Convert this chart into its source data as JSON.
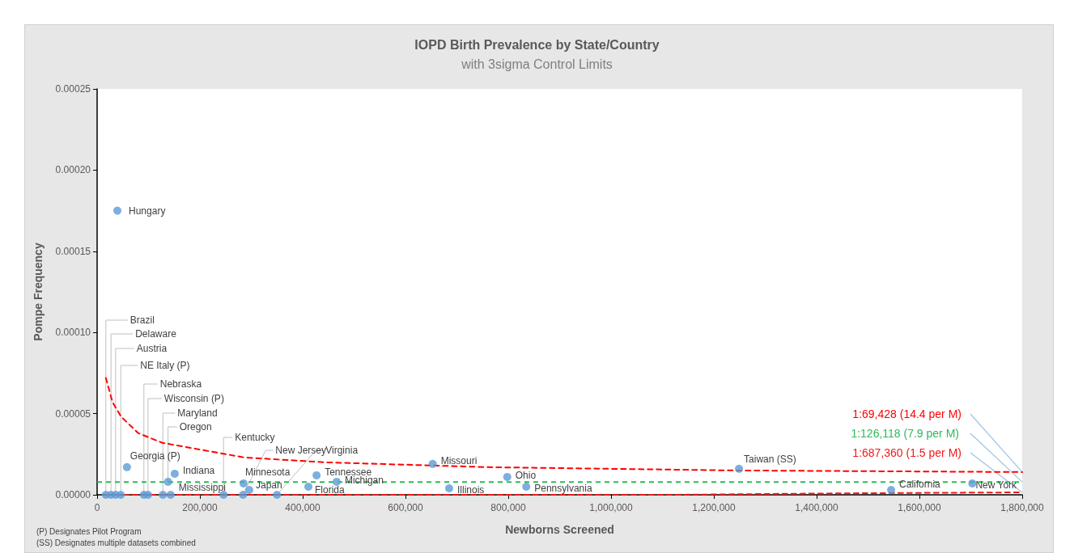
{
  "chart_data": {
    "type": "scatter",
    "title": "IOPD Birth Prevalence by State/Country",
    "subtitle": "with 3sigma Control Limits",
    "xlabel": "Newborns Screened",
    "ylabel": "Pompe Frequency",
    "xlim": [
      0,
      1800000
    ],
    "xticks": [
      {
        "value": 0,
        "label": "0"
      },
      {
        "value": 200000,
        "label": "200,000"
      },
      {
        "value": 400000,
        "label": "400,000"
      },
      {
        "value": 600000,
        "label": "600,000"
      },
      {
        "value": 800000,
        "label": "800,000"
      },
      {
        "value": 1000000,
        "label": "1,000,000"
      },
      {
        "value": 1200000,
        "label": "1,200,000"
      },
      {
        "value": 1400000,
        "label": "1,400,000"
      },
      {
        "value": 1600000,
        "label": "1,600,000"
      },
      {
        "value": 1800000,
        "label": "1,800,000"
      }
    ],
    "ylim": [
      0,
      0.00025
    ],
    "yticks": [
      {
        "value": 0,
        "label": "0.00000"
      },
      {
        "value": 5e-05,
        "label": "0.00005"
      },
      {
        "value": 0.0001,
        "label": "0.00010"
      },
      {
        "value": 0.00015,
        "label": "0.00015"
      },
      {
        "value": 0.0002,
        "label": "0.00020"
      },
      {
        "value": 0.00025,
        "label": "0.00025"
      }
    ],
    "grid": false,
    "legend": false,
    "series": [
      {
        "color": "#5b9bd5",
        "marker": "circle",
        "x": [
          39400,
          17000,
          27000,
          36000,
          46000,
          91000,
          99000,
          128000,
          138000,
          58000,
          151000,
          143000,
          246000,
          285000,
          296000,
          284000,
          350000,
          411000,
          427000,
          466000,
          653000,
          685000,
          798000,
          835000,
          1249000,
          1545000,
          1703000
        ],
        "values": [
          0.000175,
          0,
          0,
          0,
          0,
          0,
          0,
          0,
          8e-06,
          1.7e-05,
          1.3e-05,
          0,
          0,
          7e-06,
          3e-06,
          0,
          0,
          5e-06,
          1.2e-05,
          8e-06,
          1.9e-05,
          4e-06,
          1.1e-05,
          5e-06,
          1.6e-05,
          3e-06,
          7e-06
        ]
      },
      {
        "type": "line",
        "name": "1:69,428 (14.4 per M)",
        "color": "#ff0000",
        "line_style": "dashed",
        "marker": "none",
        "x": [
          17000,
          30000,
          47000,
          80000,
          127000,
          286000,
          445000,
          762000,
          1240000,
          1800000
        ],
        "values": [
          7.2e-05,
          5.7e-05,
          4.8e-05,
          3.8e-05,
          3.2e-05,
          2.3e-05,
          2e-05,
          1.7e-05,
          1.5e-05,
          1.4e-05
        ]
      },
      {
        "type": "line",
        "name": "1:687,360 (1.5 per M)",
        "color": "#f01818",
        "line_style": "dashed",
        "marker": "none",
        "x": [
          17000,
          1130000,
          1300000,
          1500000,
          1800000
        ],
        "values": [
          0,
          0,
          5e-07,
          1e-06,
          1.5e-06
        ]
      }
    ],
    "ref_lines": [
      {
        "axis": "y",
        "value": 7.9e-06,
        "label": "1:126,118 (7.9 per M)",
        "color": "#2eb85c",
        "line_style": "dashed"
      }
    ],
    "annotations": [
      {
        "text": "Hungary",
        "x": 39400,
        "y": 0.000175
      },
      {
        "text": "Brazil",
        "x": 17000,
        "y": 0
      },
      {
        "text": "Delaware",
        "x": 27000,
        "y": 0
      },
      {
        "text": "Austria",
        "x": 36000,
        "y": 0
      },
      {
        "text": "NE Italy (P)",
        "x": 46000,
        "y": 0
      },
      {
        "text": "Nebraska",
        "x": 91000,
        "y": 0
      },
      {
        "text": "Wisconsin (P)",
        "x": 99000,
        "y": 0
      },
      {
        "text": "Maryland",
        "x": 128000,
        "y": 0
      },
      {
        "text": "Oregon",
        "x": 138000,
        "y": 8e-06
      },
      {
        "text": "Georgia (P)",
        "x": 58000,
        "y": 1.7e-05
      },
      {
        "text": "Indiana",
        "x": 151000,
        "y": 1.3e-05
      },
      {
        "text": "Mississippi",
        "x": 143000,
        "y": 0
      },
      {
        "text": "Kentucky",
        "x": 246000,
        "y": 0
      },
      {
        "text": "Minnesota",
        "x": 285000,
        "y": 7e-06
      },
      {
        "text": "Japan",
        "x": 296000,
        "y": 3e-06
      },
      {
        "text": "New Jersey",
        "x": 284000,
        "y": 0
      },
      {
        "text": "Virginia",
        "x": 350000,
        "y": 0
      },
      {
        "text": "Florida",
        "x": 411000,
        "y": 5e-06
      },
      {
        "text": "Tennessee",
        "x": 427000,
        "y": 1.2e-05
      },
      {
        "text": "Michigan",
        "x": 466000,
        "y": 8e-06
      },
      {
        "text": "Missouri",
        "x": 653000,
        "y": 1.9e-05
      },
      {
        "text": "Illinois",
        "x": 685000,
        "y": 4e-06
      },
      {
        "text": "Ohio",
        "x": 798000,
        "y": 1.1e-05
      },
      {
        "text": "Pennsylvania",
        "x": 835000,
        "y": 5e-06
      },
      {
        "text": "Taiwan (SS)",
        "x": 1249000,
        "y": 1.6e-05
      },
      {
        "text": "California",
        "x": 1545000,
        "y": 3e-06
      },
      {
        "text": "New York",
        "x": 1703000,
        "y": 7e-06
      },
      "(P) Designates Pilot Program",
      "(SS) Designates multiple datasets combined"
    ]
  }
}
